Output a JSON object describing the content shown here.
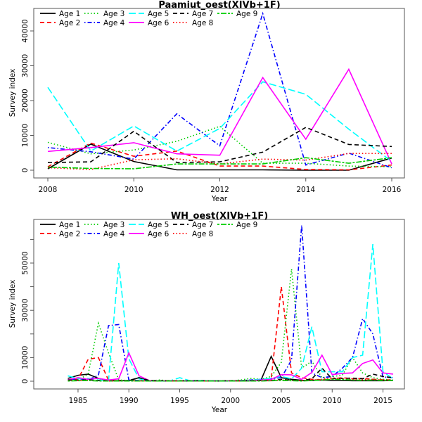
{
  "chart_data": [
    {
      "type": "line",
      "title": "Paamiut_oest(XIVb+1F)",
      "xlabel": "Year",
      "ylabel": "Survey index",
      "xlim": [
        2008,
        2016
      ],
      "ylim": [
        0,
        45000
      ],
      "x_ticks": [
        2008,
        2010,
        2012,
        2014,
        2016
      ],
      "x_tick_labels": [
        "2008",
        "2010",
        "2012",
        "2014",
        "2016"
      ],
      "y_ticks": [
        0,
        10000,
        20000,
        30000,
        40000
      ],
      "y_tick_labels": [
        "0",
        "10000",
        "20000",
        "30000",
        "40000"
      ],
      "grid": false,
      "legend_position": "top-left",
      "x": [
        2008,
        2009,
        2010,
        2011,
        2012,
        2013,
        2014,
        2015,
        2016
      ],
      "series": [
        {
          "name": "Age 1",
          "color": "#000000",
          "dash": "solid",
          "values": [
            400,
            7500,
            2500,
            100,
            100,
            100,
            0,
            0,
            3500
          ]
        },
        {
          "name": "Age 2",
          "color": "#ff0000",
          "dash": "dashed",
          "values": [
            1000,
            7800,
            4000,
            5500,
            1200,
            1200,
            200,
            100,
            1500
          ]
        },
        {
          "name": "Age 3",
          "color": "#00cd00",
          "dash": "dotted",
          "values": [
            8000,
            4700,
            5800,
            8300,
            12600,
            2000,
            2000,
            1200,
            1000
          ]
        },
        {
          "name": "Age 4",
          "color": "#0000ff",
          "dash": "dotdash",
          "values": [
            6500,
            5300,
            3200,
            16200,
            7000,
            45000,
            1500,
            4900,
            700
          ]
        },
        {
          "name": "Age 5",
          "color": "#00ffff",
          "dash": "longdash",
          "values": [
            23800,
            5500,
            12700,
            5500,
            12000,
            25400,
            21800,
            11800,
            2500
          ]
        },
        {
          "name": "Age 6",
          "color": "#ff00ff",
          "dash": "solid",
          "values": [
            5400,
            6500,
            7900,
            4700,
            4300,
            26600,
            8900,
            29000,
            1800
          ]
        },
        {
          "name": "Age 7",
          "color": "#000000",
          "dash": "dashed",
          "values": [
            2200,
            2400,
            11200,
            2200,
            2400,
            5200,
            12300,
            7400,
            6800
          ]
        },
        {
          "name": "Age 8",
          "color": "#ff0000",
          "dash": "dotted",
          "values": [
            700,
            200,
            3000,
            3300,
            1800,
            3200,
            2900,
            4800,
            4800
          ]
        },
        {
          "name": "Age 9",
          "color": "#00cd00",
          "dash": "twodash",
          "values": [
            900,
            500,
            400,
            1800,
            1800,
            1800,
            3600,
            2000,
            3600
          ]
        }
      ]
    },
    {
      "type": "line",
      "title": "WH_oest(XIVb+1F)",
      "xlabel": "Year",
      "ylabel": "Survey index",
      "xlim": [
        1984,
        2016
      ],
      "ylim": [
        0,
        66000
      ],
      "x_ticks": [
        1985,
        1990,
        1995,
        2000,
        2005,
        2010,
        2015
      ],
      "x_tick_labels": [
        "1985",
        "1990",
        "1995",
        "2000",
        "2005",
        "2010",
        "2015"
      ],
      "y_ticks": [
        0,
        10000,
        20000,
        30000,
        40000,
        50000,
        60000
      ],
      "y_tick_labels": [
        "0",
        "10000",
        "",
        "30000",
        "",
        "50000",
        ""
      ],
      "grid": false,
      "legend_position": "top-left",
      "x": [
        1984,
        1985,
        1986,
        1987,
        1988,
        1989,
        1990,
        1991,
        1992,
        1993,
        1994,
        1995,
        1996,
        1997,
        1998,
        1999,
        2000,
        2001,
        2002,
        2003,
        2004,
        2005,
        2006,
        2007,
        2008,
        2009,
        2010,
        2011,
        2012,
        2013,
        2014,
        2015,
        2016
      ],
      "series": [
        {
          "name": "Age 1",
          "color": "#000000",
          "dash": "solid",
          "values": [
            1200,
            2500,
            3000,
            1200,
            300,
            200,
            200,
            1500,
            200,
            100,
            100,
            100,
            100,
            100,
            100,
            100,
            100,
            100,
            200,
            500,
            10500,
            1500,
            800,
            400,
            300,
            500,
            300,
            300,
            200,
            200,
            200,
            200,
            300
          ]
        },
        {
          "name": "Age 2",
          "color": "#ff0000",
          "dash": "dashed",
          "values": [
            300,
            900,
            9300,
            10000,
            400,
            300,
            200,
            200,
            100,
            100,
            100,
            100,
            100,
            100,
            100,
            100,
            200,
            200,
            300,
            500,
            1000,
            40000,
            3500,
            1500,
            800,
            600,
            1000,
            1500,
            1000,
            1200,
            800,
            600,
            500
          ]
        },
        {
          "name": "Age 3",
          "color": "#00cd00",
          "dash": "dotted",
          "values": [
            300,
            500,
            3000,
            24500,
            12000,
            500,
            300,
            200,
            100,
            500,
            200,
            100,
            100,
            200,
            100,
            100,
            200,
            500,
            1200,
            800,
            2000,
            8000,
            47500,
            5500,
            8500,
            1500,
            2000,
            2500,
            10000,
            3500,
            1500,
            800,
            500
          ]
        },
        {
          "name": "Age 4",
          "color": "#0000ff",
          "dash": "dotdash",
          "values": [
            600,
            1000,
            600,
            2500,
            23500,
            24000,
            500,
            300,
            200,
            200,
            200,
            200,
            200,
            300,
            200,
            100,
            200,
            300,
            500,
            800,
            1000,
            1500,
            9000,
            66000,
            3500,
            1500,
            2000,
            5500,
            10000,
            26500,
            20000,
            1800,
            1500
          ]
        },
        {
          "name": "Age 5",
          "color": "#00ffff",
          "dash": "longdash",
          "values": [
            2300,
            1000,
            1200,
            500,
            300,
            50000,
            9500,
            1000,
            200,
            100,
            100,
            1500,
            200,
            300,
            200,
            100,
            100,
            200,
            400,
            800,
            1200,
            2000,
            1000,
            5500,
            23000,
            4000,
            4000,
            4000,
            10000,
            11000,
            58000,
            4000,
            1000
          ]
        },
        {
          "name": "Age 6",
          "color": "#ff00ff",
          "dash": "solid",
          "values": [
            600,
            1500,
            800,
            1200,
            500,
            1000,
            12000,
            2300,
            300,
            200,
            200,
            200,
            200,
            100,
            100,
            100,
            200,
            200,
            300,
            500,
            700,
            2800,
            2700,
            800,
            3700,
            11000,
            2800,
            3300,
            3500,
            7500,
            9000,
            3500,
            3000
          ]
        },
        {
          "name": "Age 7",
          "color": "#000000",
          "dash": "dashed",
          "values": [
            500,
            400,
            600,
            300,
            200,
            200,
            300,
            1500,
            300,
            200,
            200,
            200,
            200,
            200,
            100,
            100,
            200,
            200,
            200,
            300,
            300,
            800,
            400,
            200,
            1000,
            5500,
            1000,
            1200,
            1300,
            1000,
            3000,
            2000,
            1500
          ]
        },
        {
          "name": "Age 8",
          "color": "#ff0000",
          "dash": "dotted",
          "values": [
            200,
            300,
            400,
            200,
            100,
            100,
            100,
            200,
            100,
            100,
            100,
            100,
            100,
            100,
            100,
            100,
            100,
            100,
            100,
            200,
            200,
            500,
            300,
            200,
            500,
            800,
            1500,
            1000,
            800,
            600,
            800,
            500,
            400
          ]
        },
        {
          "name": "Age 9",
          "color": "#00cd00",
          "dash": "twodash",
          "values": [
            100,
            200,
            300,
            100,
            100,
            100,
            100,
            100,
            100,
            100,
            100,
            100,
            100,
            100,
            100,
            100,
            100,
            100,
            100,
            100,
            200,
            300,
            200,
            100,
            300,
            500,
            800,
            700,
            500,
            400,
            500,
            300,
            300
          ]
        }
      ]
    }
  ]
}
